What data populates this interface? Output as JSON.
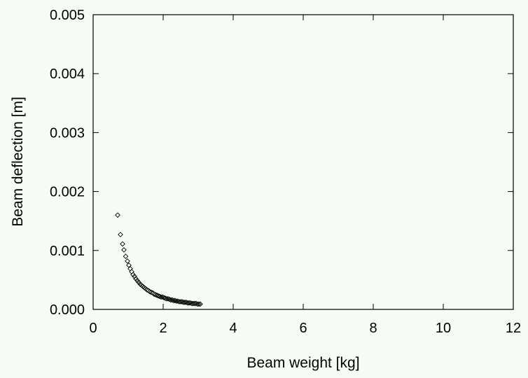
{
  "chart_data": {
    "type": "scatter",
    "title": "",
    "xlabel": "Beam weight [kg]",
    "ylabel": "Beam deflection [m]",
    "xlim": [
      0,
      12
    ],
    "ylim": [
      0,
      0.005
    ],
    "xticks": [
      0,
      2,
      4,
      6,
      8,
      10,
      12
    ],
    "xtick_labels": [
      "0",
      "2",
      "4",
      "6",
      "8",
      "10",
      "12"
    ],
    "yticks": [
      0,
      0.001,
      0.002,
      0.003,
      0.004,
      0.005
    ],
    "ytick_labels": [
      "0.000",
      "0.001",
      "0.002",
      "0.003",
      "0.004",
      "0.005"
    ],
    "grid": false,
    "legend": "none",
    "marker": "diamond-open",
    "marker_color": "#000000",
    "background_color": "#f6fbf6",
    "series": [
      {
        "x": [
          0.7,
          0.78,
          0.84,
          0.88,
          0.93,
          0.98,
          1.02,
          1.06,
          1.1,
          1.14,
          1.18,
          1.22,
          1.26,
          1.3,
          1.34,
          1.38,
          1.42,
          1.46,
          1.5,
          1.54,
          1.58,
          1.62,
          1.66,
          1.7,
          1.74,
          1.78,
          1.82,
          1.86,
          1.9,
          1.94,
          1.98,
          2.02,
          2.06,
          2.1,
          2.14,
          2.18,
          2.22,
          2.26,
          2.3,
          2.34,
          2.38,
          2.42,
          2.46,
          2.5,
          2.54,
          2.58,
          2.62,
          2.66,
          2.7,
          2.74,
          2.78,
          2.82,
          2.86,
          2.9,
          2.94,
          2.98,
          3.02,
          3.06
        ],
        "y": [
          0.0016,
          0.00127,
          0.00111,
          0.00101,
          0.0009,
          0.00082,
          0.00075,
          0.00069,
          0.00064,
          0.00059,
          0.00056,
          0.00052,
          0.00049,
          0.00046,
          0.00043,
          0.00041,
          0.00039,
          0.00037,
          0.00035,
          0.00033,
          0.00032,
          0.0003,
          0.00029,
          0.00028,
          0.00026,
          0.00025,
          0.00024,
          0.00023,
          0.00022,
          0.00021,
          0.00021,
          0.0002,
          0.00019,
          0.00018,
          0.00018,
          0.00017,
          0.00016,
          0.00016,
          0.00015,
          0.00015,
          0.00014,
          0.00014,
          0.00013,
          0.00013,
          0.00013,
          0.00012,
          0.00012,
          0.00012,
          0.00011,
          0.00011,
          0.00011,
          0.0001,
          0.0001,
          0.0001,
          0.0001,
          9e-05,
          9e-05,
          9e-05
        ]
      }
    ]
  }
}
